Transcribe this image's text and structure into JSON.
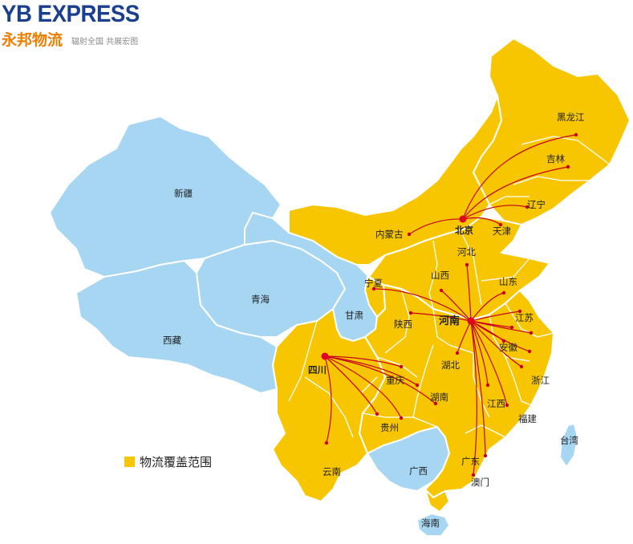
{
  "brand": {
    "name_en": "YB EXPRESS",
    "name_cn": "永邦物流",
    "slogan": "辐射全国 共展宏图"
  },
  "legend": {
    "label": "物流覆盖范围",
    "color": "#f7c600"
  },
  "colors": {
    "coverage": "#f7c600",
    "non_coverage": "#a6d6f2",
    "border": "#ffffff",
    "route": "#c8001e",
    "hub": "#e1001f"
  },
  "hubs": {
    "beijing": "北京",
    "henan": "河南",
    "sichuan": "四川"
  },
  "regions": {
    "heilongjiang": "黑龙江",
    "jilin": "吉林",
    "liaoning": "辽宁",
    "tianjin": "天津",
    "neimenggu": "内蒙古",
    "hebei": "河北",
    "shanxi": "山西",
    "shandong": "山东",
    "ningxia": "宁夏",
    "gansu": "甘肃",
    "shaanxi": "陕西",
    "jiangsu": "江苏",
    "anhui": "安徽",
    "hubei": "湖北",
    "zhejiang": "浙江",
    "jiangxi": "江西",
    "fujian": "福建",
    "hunan": "湖南",
    "chongqing": "重庆",
    "guizhou": "贵州",
    "guangdong": "广东",
    "guangxi": "广西",
    "yunnan": "云南",
    "macau": "澳门",
    "hainan": "海南",
    "taiwan": "台湾",
    "xinjiang": "新疆",
    "qinghai": "青海",
    "xizang": "西藏"
  }
}
